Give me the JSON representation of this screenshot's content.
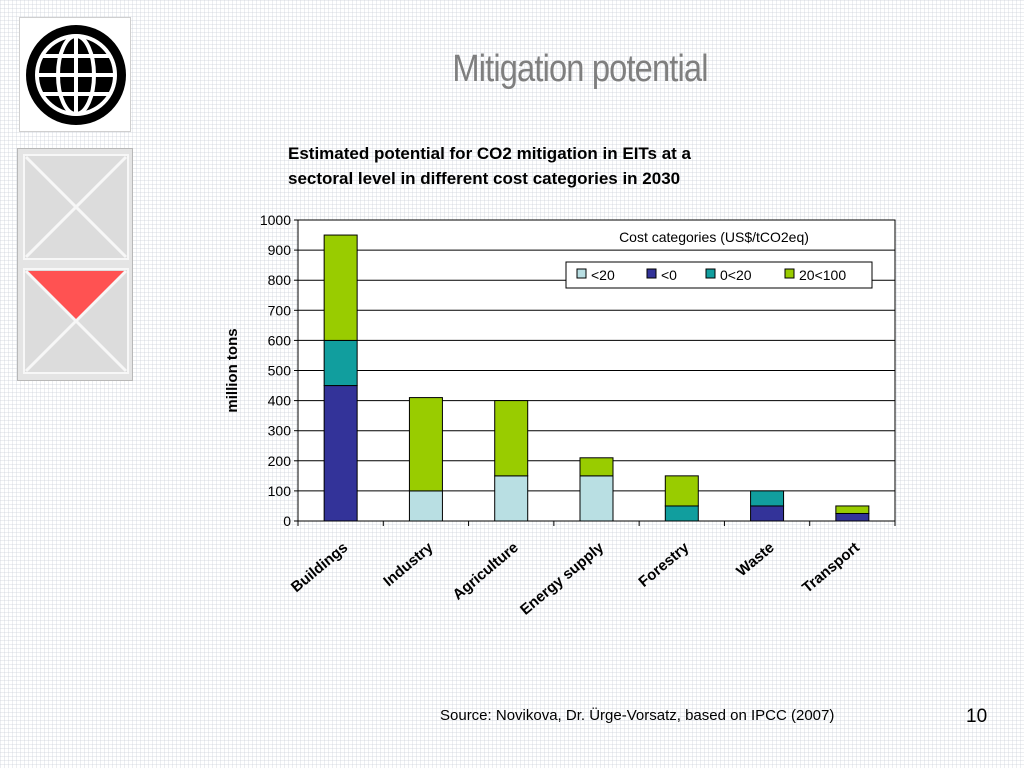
{
  "slide": {
    "title": "Mitigation potential",
    "source": "Source: Novikova, Dr. Ürge-Vorsatz, based on IPCC (2007)",
    "page_number": "10",
    "logo_icon": "world-bank-globe-icon"
  },
  "chart_data": {
    "type": "bar",
    "stacked": true,
    "title": "Estimated potential for CO2 mitigation in EITs at a sectoral level in different cost categories in 2030",
    "title_lines": [
      "Estimated potential for CO2 mitigation in EITs at a",
      "sectoral level in different cost categories in 2030"
    ],
    "xlabel": "",
    "ylabel": "million tons",
    "ylim": [
      0,
      1000
    ],
    "yticks": [
      0,
      100,
      200,
      300,
      400,
      500,
      600,
      700,
      800,
      900,
      1000
    ],
    "grid": true,
    "legend_title": "Cost categories (US$/tCO2eq)",
    "legend_position": "top-right",
    "categories": [
      "Buildings",
      "Industry",
      "Agriculture",
      "Energy supply",
      "Forestry",
      "Waste",
      "Transport"
    ],
    "series": [
      {
        "name": "<20",
        "color": "#b9dfe3",
        "values": [
          0,
          100,
          150,
          150,
          0,
          0,
          0
        ]
      },
      {
        "name": "<0",
        "color": "#333399",
        "values": [
          450,
          0,
          0,
          0,
          0,
          50,
          25
        ]
      },
      {
        "name": "0<20",
        "color": "#119e9e",
        "values": [
          150,
          0,
          0,
          0,
          50,
          50,
          0
        ]
      },
      {
        "name": "20<100",
        "color": "#99cc00",
        "values": [
          350,
          310,
          250,
          60,
          100,
          0,
          25
        ]
      }
    ]
  }
}
